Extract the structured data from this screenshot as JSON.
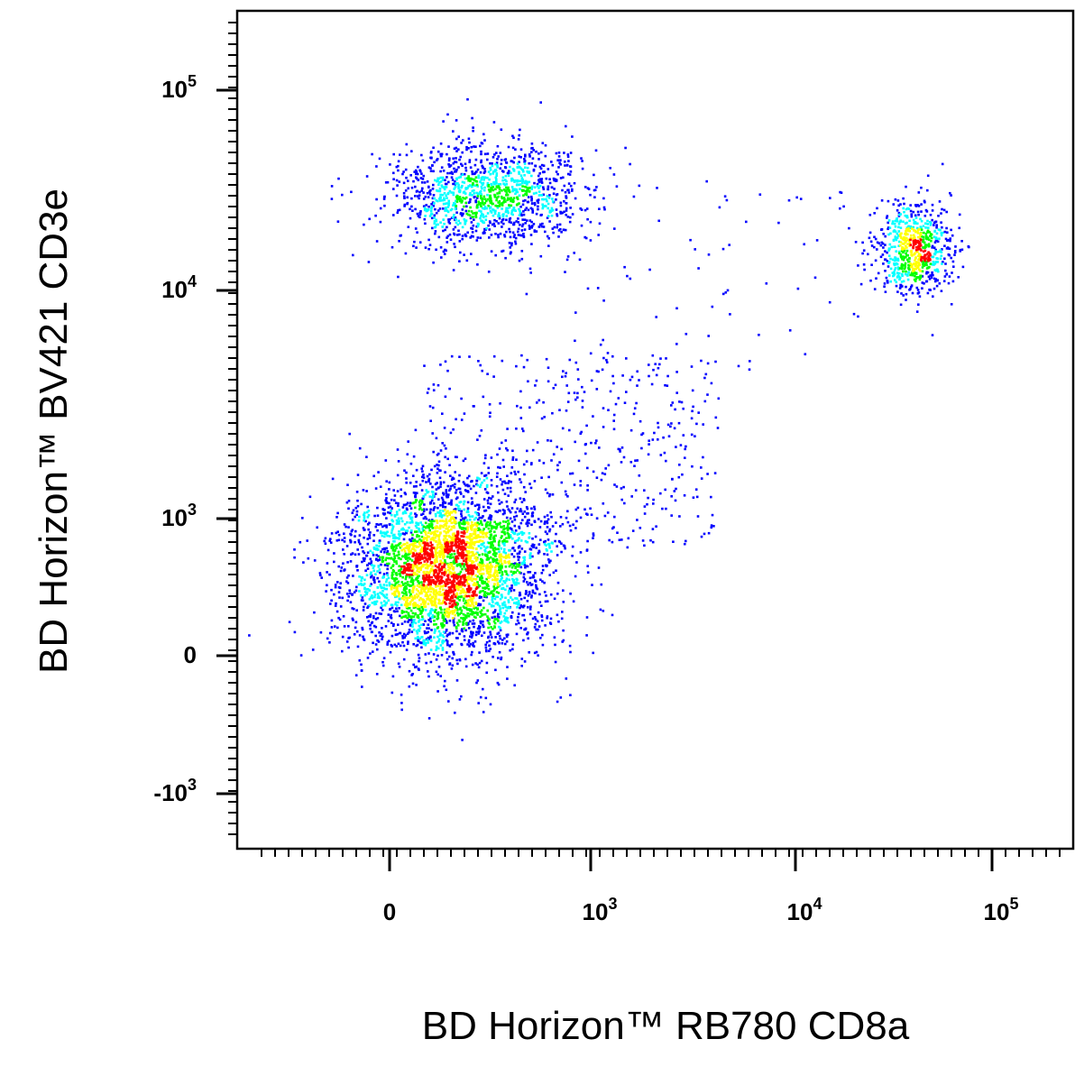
{
  "chart_data": {
    "type": "scatter",
    "style": "pseudocolor density dot plot (flow cytometry)",
    "xlabel": "BD Horizon™ RB780 CD8a",
    "ylabel": "BD Horizon™ BV421 CD3e",
    "xscale": "biexponential",
    "yscale": "biexponential",
    "xlim": [
      -400,
      200000
    ],
    "ylim": [
      -1700,
      250000
    ],
    "x_ticks": [
      {
        "value": 0,
        "base": "0",
        "exp": ""
      },
      {
        "value": 1000,
        "base": "10",
        "exp": "3"
      },
      {
        "value": 10000,
        "base": "10",
        "exp": "4"
      },
      {
        "value": 100000,
        "base": "10",
        "exp": "5"
      }
    ],
    "y_ticks": [
      {
        "value": -1000,
        "base": "-10",
        "exp": "3"
      },
      {
        "value": 0,
        "base": "0",
        "exp": ""
      },
      {
        "value": 1000,
        "base": "10",
        "exp": "3"
      },
      {
        "value": 10000,
        "base": "10",
        "exp": "4"
      },
      {
        "value": 100000,
        "base": "10",
        "exp": "5"
      }
    ],
    "grid": false,
    "legend": "none",
    "density_colors": [
      "#0000ff",
      "#00ffff",
      "#00ff00",
      "#ffff00",
      "#ff0000"
    ],
    "populations": [
      {
        "x_center": 60,
        "y_center": 280,
        "spread": "large",
        "points": 3800,
        "peak_density": "high"
      },
      {
        "x_center": 150,
        "y_center": 30000,
        "spread": "medium",
        "points": 1300,
        "peak_density": "medium"
      },
      {
        "x_center": 40000,
        "y_center": 16000,
        "spread": "small",
        "points": 700,
        "peak_density": "high"
      },
      {
        "x_center": 700,
        "y_center": 2000,
        "spread": "diffuse",
        "points": 450,
        "peak_density": "low"
      },
      {
        "x_center": 4000,
        "y_center": 12000,
        "spread": "diffuse",
        "points": 70,
        "peak_density": "low"
      }
    ]
  }
}
